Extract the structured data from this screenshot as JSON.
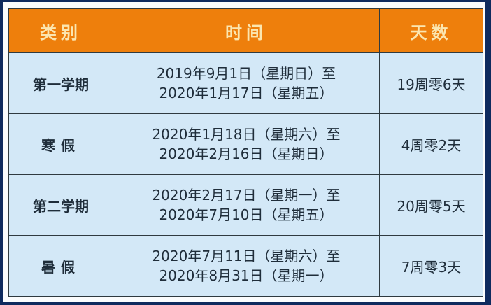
{
  "header": {
    "category": "类别",
    "time": "时间",
    "days": "天数"
  },
  "rows": [
    {
      "category": "第一学期",
      "start": "2019年9月1日（星期日）至",
      "end": "2020年1月17日（星期五）",
      "days": "19周零6天"
    },
    {
      "category": "寒假",
      "start": "2020年1月18日（星期六）至",
      "end": "2020年2月16日（星期日）",
      "days": "4周零2天"
    },
    {
      "category": "第二学期",
      "start": "2020年2月17日（星期一）至",
      "end": "2020年7月10日（星期五）",
      "days": "20周零5天"
    },
    {
      "category": "暑假",
      "start": "2020年7月11日（星期六）至",
      "end": "2020年8月31日（星期一）",
      "days": "7周零3天"
    }
  ],
  "colors": {
    "header_bg": "#ee7f0c",
    "header_text": "#fbe6b0",
    "cell_bg": "#d3e8f7",
    "frame": "#0f2a5e"
  }
}
